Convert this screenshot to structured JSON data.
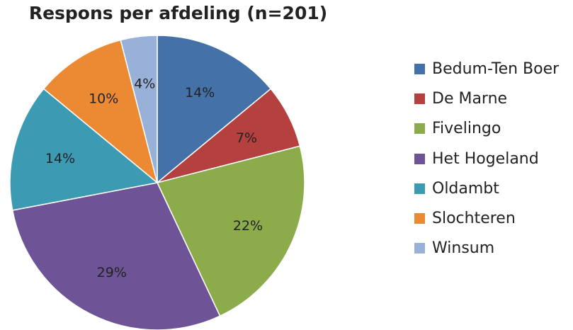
{
  "chart_data": {
    "type": "pie",
    "title": "Respons per afdeling (n=201)",
    "legend_position": "right",
    "slices": [
      {
        "name": "Bedum-Ten Boer",
        "value": 14,
        "label": "14%",
        "color": "#4472a8"
      },
      {
        "name": "De Marne",
        "value": 7,
        "label": "7%",
        "color": "#b4403f"
      },
      {
        "name": "Fivelingo",
        "value": 22,
        "label": "22%",
        "color": "#8cab4a"
      },
      {
        "name": "Het Hogeland",
        "value": 29,
        "label": "29%",
        "color": "#6f5397"
      },
      {
        "name": "Oldambt",
        "value": 14,
        "label": "14%",
        "color": "#3c9bb3"
      },
      {
        "name": "Slochteren",
        "value": 10,
        "label": "10%",
        "color": "#ec8a33"
      },
      {
        "name": "Winsum",
        "value": 4,
        "label": "4%",
        "color": "#99b0d8"
      }
    ]
  }
}
